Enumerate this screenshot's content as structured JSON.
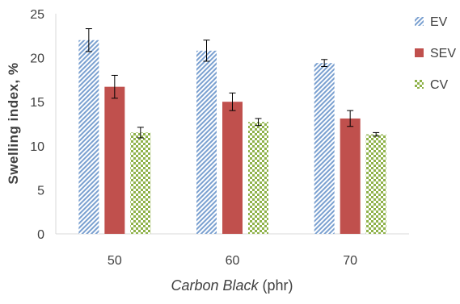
{
  "chart_data": {
    "type": "bar",
    "categories": [
      "50",
      "60",
      "70"
    ],
    "series": [
      {
        "name": "EV",
        "values": [
          22.0,
          20.8,
          19.4
        ],
        "errors": [
          1.3,
          1.2,
          0.4
        ],
        "color": "#7aa0d0",
        "pattern": "diagonal-hatch"
      },
      {
        "name": "SEV",
        "values": [
          16.7,
          15.0,
          13.1
        ],
        "errors": [
          1.3,
          1.0,
          0.9
        ],
        "color": "#c0504d",
        "pattern": "solid"
      },
      {
        "name": "CV",
        "values": [
          11.5,
          12.7,
          11.3
        ],
        "errors": [
          0.6,
          0.4,
          0.2
        ],
        "color": "#8fb24a",
        "pattern": "checker"
      }
    ],
    "ylabel": "Swelling index, %",
    "xlabel_italic": "Carbon Black",
    "xlabel_unit": " (phr)",
    "ylim": [
      0,
      25
    ],
    "yticks": [
      "0",
      "5",
      "10",
      "15",
      "20",
      "25"
    ],
    "grid": false,
    "legend_position": "right"
  }
}
